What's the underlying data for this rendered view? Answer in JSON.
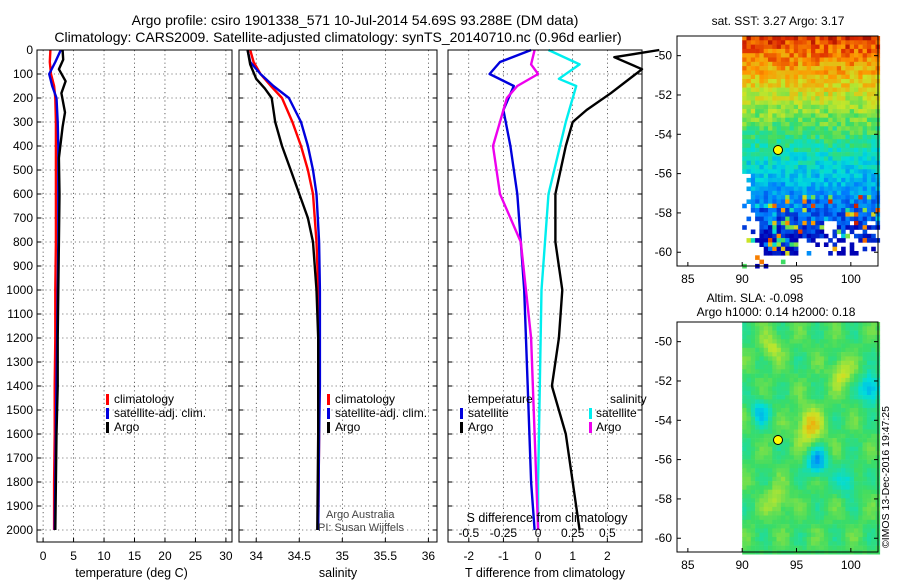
{
  "header": {
    "title1": "Argo profile: csiro 1901338_571 10-Jul-2014 54.69S 93.288E (DM data)",
    "title2": "Climatology: CARS2009. Satellite-adjusted climatology: synTS_20140710.nc (0.96d earlier)"
  },
  "colors": {
    "climatology": "#ff0000",
    "satellite": "#0000dd",
    "argo": "#000000",
    "satellite_s": "#00eeee",
    "argo_s": "#ee00ee"
  },
  "chart_data": [
    {
      "type": "line",
      "name": "temperature",
      "xlabel": "temperature (deg C)",
      "xlim": [
        -1,
        31
      ],
      "ylim": [
        2050,
        0
      ],
      "xticks": [
        0,
        5,
        10,
        15,
        20,
        25,
        30
      ],
      "yticks": [
        0,
        100,
        200,
        300,
        400,
        500,
        600,
        700,
        800,
        900,
        1000,
        1100,
        1200,
        1300,
        1400,
        1500,
        1600,
        1700,
        1800,
        1900,
        2000
      ],
      "series": [
        {
          "name": "climatology",
          "color": "red",
          "x": [
            1.2,
            1.1,
            1.3,
            1.8,
            2.0,
            2.1,
            2.1,
            2.1,
            2.1,
            2.0,
            2.0,
            1.9,
            1.9,
            1.8,
            1.8
          ],
          "y": [
            0,
            50,
            100,
            150,
            200,
            300,
            400,
            600,
            800,
            1000,
            1200,
            1400,
            1600,
            1800,
            2000
          ]
        },
        {
          "name": "satellite-adj. clim.",
          "color": "blue",
          "x": [
            2.9,
            2.0,
            1.0,
            1.5,
            2.2,
            2.4,
            2.5,
            2.5,
            2.5,
            2.4,
            2.3,
            2.2,
            2.1,
            2.0,
            1.9
          ],
          "y": [
            0,
            50,
            100,
            150,
            200,
            300,
            400,
            600,
            800,
            1000,
            1200,
            1400,
            1600,
            1800,
            2000
          ]
        },
        {
          "name": "Argo",
          "color": "black",
          "x": [
            3.2,
            3.3,
            2.6,
            3.7,
            3.0,
            3.6,
            3.2,
            2.6,
            2.7,
            2.6,
            2.5,
            2.4,
            2.4,
            2.2,
            2.1,
            2.0
          ],
          "y": [
            0,
            40,
            80,
            130,
            180,
            260,
            320,
            450,
            600,
            800,
            1000,
            1200,
            1400,
            1600,
            1800,
            2000
          ]
        }
      ]
    },
    {
      "type": "line",
      "name": "salinity",
      "xlabel": "salinity",
      "xlim": [
        33.8,
        36.1
      ],
      "ylim": [
        2050,
        0
      ],
      "xticks": [
        34,
        34.5,
        35,
        35.5,
        36
      ],
      "series": [
        {
          "name": "climatology",
          "color": "red",
          "x": [
            33.93,
            33.97,
            34.05,
            34.17,
            34.3,
            34.42,
            34.52,
            34.6,
            34.66,
            34.7,
            34.72,
            34.73,
            34.73,
            34.73,
            34.72
          ],
          "y": [
            0,
            50,
            100,
            150,
            200,
            300,
            400,
            500,
            600,
            800,
            1000,
            1200,
            1400,
            1600,
            2000
          ]
        },
        {
          "name": "satellite-adj. clim.",
          "color": "blue",
          "x": [
            33.9,
            33.93,
            34.05,
            34.2,
            34.38,
            34.52,
            34.6,
            34.66,
            34.7,
            34.73,
            34.74,
            34.74,
            34.74,
            34.73,
            34.72
          ],
          "y": [
            0,
            50,
            100,
            150,
            200,
            300,
            400,
            500,
            600,
            800,
            1000,
            1200,
            1400,
            1600,
            2000
          ]
        },
        {
          "name": "Argo",
          "color": "black",
          "x": [
            33.9,
            33.93,
            34.0,
            34.1,
            34.18,
            34.22,
            34.3,
            34.4,
            34.5,
            34.6,
            34.66,
            34.7,
            34.72,
            34.72,
            34.71
          ],
          "y": [
            0,
            60,
            120,
            160,
            200,
            300,
            400,
            500,
            600,
            700,
            800,
            1000,
            1200,
            1600,
            2000
          ]
        }
      ]
    },
    {
      "type": "line",
      "name": "difference",
      "xlabel": "T difference from climatology",
      "xlabel_top": "S difference from climatology",
      "xlim": [
        -2.6,
        3.0
      ],
      "ylim": [
        2050,
        0
      ],
      "xticks": [
        -2,
        -1,
        0,
        1,
        2
      ],
      "xticks_s": [
        "-0.5",
        "-0.25",
        "0",
        "0.25",
        "0.5"
      ],
      "s_scale": 4,
      "series": [
        {
          "name": "temperature satellite",
          "color": "blue",
          "x": [
            -0.2,
            -1.1,
            -1.4,
            -0.7,
            -1.0,
            -0.8,
            -0.6,
            -0.5,
            -0.4,
            -0.3,
            -0.2,
            -0.1
          ],
          "y": [
            0,
            50,
            100,
            150,
            250,
            400,
            600,
            800,
            1000,
            1400,
            1800,
            2000
          ]
        },
        {
          "name": "temperature Argo",
          "color": "black",
          "x": [
            3.5,
            2.2,
            3.0,
            2.1,
            1.4,
            1.0,
            0.8,
            0.5,
            0.5,
            0.7,
            0.6,
            0.4,
            0.8,
            1.0,
            1.2
          ],
          "y": [
            0,
            30,
            80,
            180,
            250,
            300,
            400,
            600,
            800,
            1000,
            1200,
            1400,
            1600,
            1800,
            2000
          ]
        },
        {
          "name": "salinity satellite",
          "color": "cyan",
          "x": [
            0.3,
            1.2,
            0.6,
            1.1,
            0.8,
            0.3,
            0.1,
            0.05,
            0.0,
            0.0
          ],
          "y": [
            0,
            60,
            120,
            150,
            300,
            600,
            1000,
            1400,
            1800,
            2000
          ]
        },
        {
          "name": "salinity Argo",
          "color": "magenta",
          "x": [
            -0.1,
            -0.2,
            0.0,
            -0.6,
            -0.9,
            -1.3,
            -1.1,
            -0.5,
            -0.2,
            -0.1,
            0.0
          ],
          "y": [
            0,
            60,
            100,
            150,
            200,
            400,
            600,
            800,
            1200,
            1600,
            2000
          ]
        }
      ]
    }
  ],
  "legends": {
    "clim": "climatology",
    "sat": "satellite-adj. clim.",
    "argo": "Argo",
    "hdr_t": "temperature",
    "hdr_s": "salinity",
    "satellite": "satellite"
  },
  "credits": {
    "line1": "Argo Australia",
    "line2": "PI: Susan Wijffels",
    "imos": "©IMOS 13-Dec-2016 19:47:25"
  },
  "maps": {
    "sst_title": "sat. SST: 3.27 Argo: 3.17",
    "sla_title1": "Altim. SLA: -0.098",
    "sla_title2": "Argo h1000: 0.14 h2000: 0.18",
    "lat_ticks": [
      "-50",
      "-52",
      "-54",
      "-56",
      "-58",
      "-60"
    ],
    "lon_ticks": [
      "85",
      "90",
      "95",
      "100"
    ]
  }
}
